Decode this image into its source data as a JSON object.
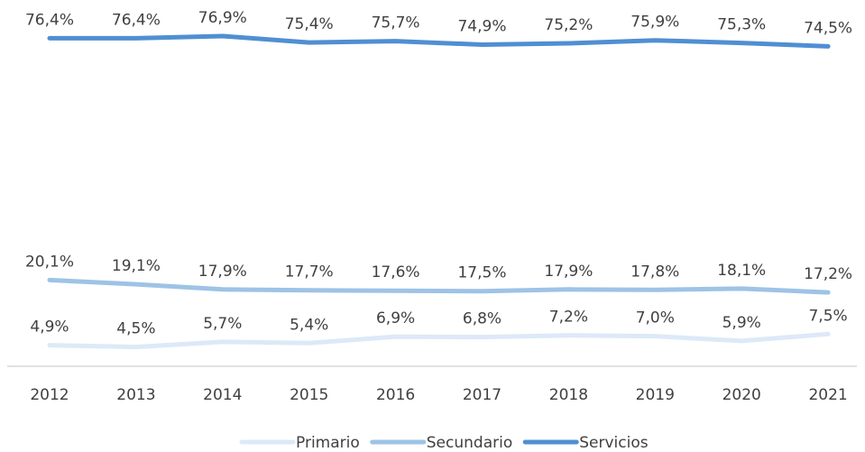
{
  "chart_data": {
    "type": "line",
    "categories": [
      "2012",
      "2013",
      "2014",
      "2015",
      "2016",
      "2017",
      "2018",
      "2019",
      "2020",
      "2021"
    ],
    "series": [
      {
        "name": "Primario",
        "color": "#dce9f7",
        "values": [
          4.9,
          4.5,
          5.7,
          5.4,
          6.9,
          6.8,
          7.2,
          7.0,
          5.9,
          7.5
        ],
        "value_labels": [
          "4,9%",
          "4,5%",
          "5,7%",
          "5,4%",
          "6,9%",
          "6,8%",
          "7,2%",
          "7,0%",
          "5,9%",
          "7,5%"
        ]
      },
      {
        "name": "Secundario",
        "color": "#9dc3e6",
        "values": [
          20.1,
          19.1,
          17.9,
          17.7,
          17.6,
          17.5,
          17.9,
          17.8,
          18.1,
          17.2
        ],
        "value_labels": [
          "20,1%",
          "19,1%",
          "17,9%",
          "17,7%",
          "17,6%",
          "17,5%",
          "17,9%",
          "17,8%",
          "18,1%",
          "17,2%"
        ]
      },
      {
        "name": "Servicios",
        "color": "#4f8fd3",
        "values": [
          76.4,
          76.4,
          76.9,
          75.4,
          75.7,
          74.9,
          75.2,
          75.9,
          75.3,
          74.5
        ],
        "value_labels": [
          "76,4%",
          "76,4%",
          "76,9%",
          "75,4%",
          "75,7%",
          "74,9%",
          "75,2%",
          "75,9%",
          "75,3%",
          "74,5%"
        ]
      }
    ],
    "ylim": [
      0,
      85
    ],
    "legend": "bottom"
  }
}
